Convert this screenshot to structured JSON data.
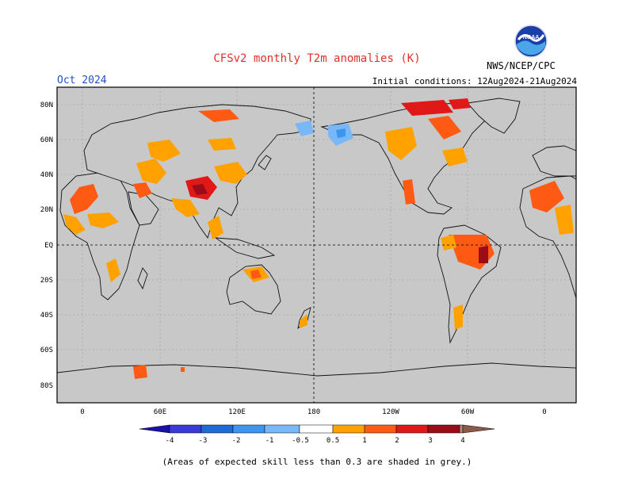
{
  "header": {
    "title": "CFSv2 monthly T2m anomalies (K)",
    "month": "Oct 2024",
    "initial_conditions": "Initial conditions: 12Aug2024-21Aug2024",
    "agency": "NWS/NCEP/CPC"
  },
  "colors": {
    "title": "#e0302a",
    "month": "#2050c8",
    "ocean_grey": "#c8c8c8",
    "land_white": "#ffffff"
  },
  "logo": {
    "icon": "noaa-logo",
    "text": "NOAA"
  },
  "map": {
    "projection": "equirectangular, centered 180",
    "lat_labels": [
      "80N",
      "60N",
      "40N",
      "20N",
      "EQ",
      "20S",
      "40S",
      "60S",
      "80S"
    ],
    "lon_labels": [
      "0",
      "60E",
      "120E",
      "180",
      "120W",
      "60W",
      "0"
    ],
    "reference_lines": [
      "equator",
      "dateline"
    ]
  },
  "colorbar": {
    "labels": [
      "-4",
      "-3",
      "-2",
      "-1",
      "-0.5",
      "0.5",
      "1",
      "2",
      "3",
      "4"
    ],
    "colors": [
      "#1c0fa6",
      "#3a3ad8",
      "#1e6ad6",
      "#3c96f0",
      "#78b8f8",
      "#ffffff",
      "#ffa200",
      "#ff5a14",
      "#e01818",
      "#9c0c18",
      "#b8867a",
      "#8c5a48"
    ]
  },
  "footnote": "(Areas of expected skill less than 0.3 are shaded in grey.)"
}
